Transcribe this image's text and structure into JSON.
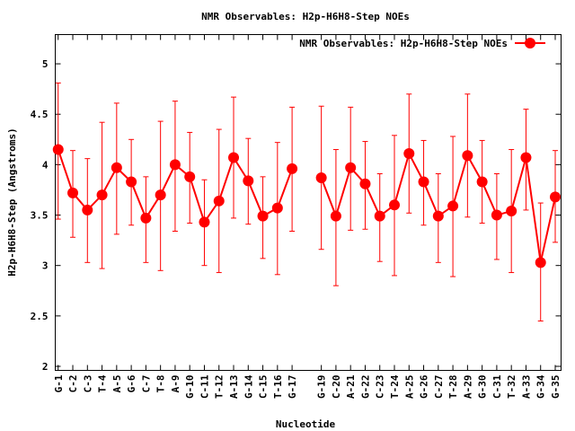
{
  "chart_data": {
    "type": "line",
    "title": "NMR Observables: H2p-H6H8-Step NOEs",
    "xlabel": "Nucleotide",
    "ylabel": "H2p-H6H8-Step (Angstroms)",
    "ylim": [
      1.96,
      5.29
    ],
    "xlim": [
      0.8,
      35.4
    ],
    "yticks": [
      2,
      2.5,
      3,
      3.5,
      4,
      4.5,
      5
    ],
    "ytick_labels": [
      "2",
      "2.5",
      "3",
      "3.5",
      "4",
      "4.5",
      "5"
    ],
    "grid": false,
    "legend": {
      "label": "NMR Observables: H2p-H6H8-Step NOEs",
      "placement": "top-right"
    },
    "colors": {
      "series": "#ff0000",
      "errorbar": "#ff0000",
      "axis": "#000000"
    },
    "points": [
      {
        "x": 1,
        "label": "G-1",
        "y": 4.15,
        "lo": 3.46,
        "hi": 4.81
      },
      {
        "x": 2,
        "label": "C-2",
        "y": 3.72,
        "lo": 3.28,
        "hi": 4.14
      },
      {
        "x": 3,
        "label": "C-3",
        "y": 3.55,
        "lo": 3.03,
        "hi": 4.06
      },
      {
        "x": 4,
        "label": "T-4",
        "y": 3.7,
        "lo": 2.97,
        "hi": 4.42
      },
      {
        "x": 5,
        "label": "A-5",
        "y": 3.97,
        "lo": 3.31,
        "hi": 4.61
      },
      {
        "x": 6,
        "label": "G-6",
        "y": 3.83,
        "lo": 3.4,
        "hi": 4.25
      },
      {
        "x": 7,
        "label": "C-7",
        "y": 3.47,
        "lo": 3.03,
        "hi": 3.88
      },
      {
        "x": 8,
        "label": "T-8",
        "y": 3.7,
        "lo": 2.95,
        "hi": 4.43
      },
      {
        "x": 9,
        "label": "A-9",
        "y": 4.0,
        "lo": 3.34,
        "hi": 4.63
      },
      {
        "x": 10,
        "label": "G-10",
        "y": 3.88,
        "lo": 3.42,
        "hi": 4.32
      },
      {
        "x": 11,
        "label": "C-11",
        "y": 3.43,
        "lo": 3.0,
        "hi": 3.85
      },
      {
        "x": 12,
        "label": "T-12",
        "y": 3.64,
        "lo": 2.93,
        "hi": 4.35
      },
      {
        "x": 13,
        "label": "A-13",
        "y": 4.07,
        "lo": 3.47,
        "hi": 4.67
      },
      {
        "x": 14,
        "label": "G-14",
        "y": 3.84,
        "lo": 3.41,
        "hi": 4.26
      },
      {
        "x": 15,
        "label": "C-15",
        "y": 3.49,
        "lo": 3.07,
        "hi": 3.88
      },
      {
        "x": 16,
        "label": "T-16",
        "y": 3.57,
        "lo": 2.91,
        "hi": 4.22
      },
      {
        "x": 17,
        "label": "G-17",
        "y": 3.96,
        "lo": 3.34,
        "hi": 4.57
      },
      {
        "x": 19,
        "label": "G-19",
        "y": 3.87,
        "lo": 3.16,
        "hi": 4.58
      },
      {
        "x": 20,
        "label": "C-20",
        "y": 3.49,
        "lo": 2.8,
        "hi": 4.15
      },
      {
        "x": 21,
        "label": "A-21",
        "y": 3.97,
        "lo": 3.35,
        "hi": 4.57
      },
      {
        "x": 22,
        "label": "G-22",
        "y": 3.81,
        "lo": 3.36,
        "hi": 4.23
      },
      {
        "x": 23,
        "label": "C-23",
        "y": 3.49,
        "lo": 3.04,
        "hi": 3.91
      },
      {
        "x": 24,
        "label": "T-24",
        "y": 3.6,
        "lo": 2.9,
        "hi": 4.29
      },
      {
        "x": 25,
        "label": "A-25",
        "y": 4.11,
        "lo": 3.52,
        "hi": 4.7
      },
      {
        "x": 26,
        "label": "G-26",
        "y": 3.83,
        "lo": 3.4,
        "hi": 4.24
      },
      {
        "x": 27,
        "label": "C-27",
        "y": 3.49,
        "lo": 3.03,
        "hi": 3.91
      },
      {
        "x": 28,
        "label": "T-28",
        "y": 3.59,
        "lo": 2.89,
        "hi": 4.28
      },
      {
        "x": 29,
        "label": "A-29",
        "y": 4.09,
        "lo": 3.48,
        "hi": 4.7
      },
      {
        "x": 30,
        "label": "G-30",
        "y": 3.83,
        "lo": 3.42,
        "hi": 4.24
      },
      {
        "x": 31,
        "label": "C-31",
        "y": 3.5,
        "lo": 3.06,
        "hi": 3.91
      },
      {
        "x": 32,
        "label": "T-32",
        "y": 3.54,
        "lo": 2.93,
        "hi": 4.15
      },
      {
        "x": 33,
        "label": "A-33",
        "y": 4.07,
        "lo": 3.55,
        "hi": 4.55
      },
      {
        "x": 34,
        "label": "G-34",
        "y": 3.03,
        "lo": 2.45,
        "hi": 3.62
      },
      {
        "x": 35,
        "label": "G-35",
        "y": 3.68,
        "lo": 3.23,
        "hi": 4.14
      }
    ]
  }
}
